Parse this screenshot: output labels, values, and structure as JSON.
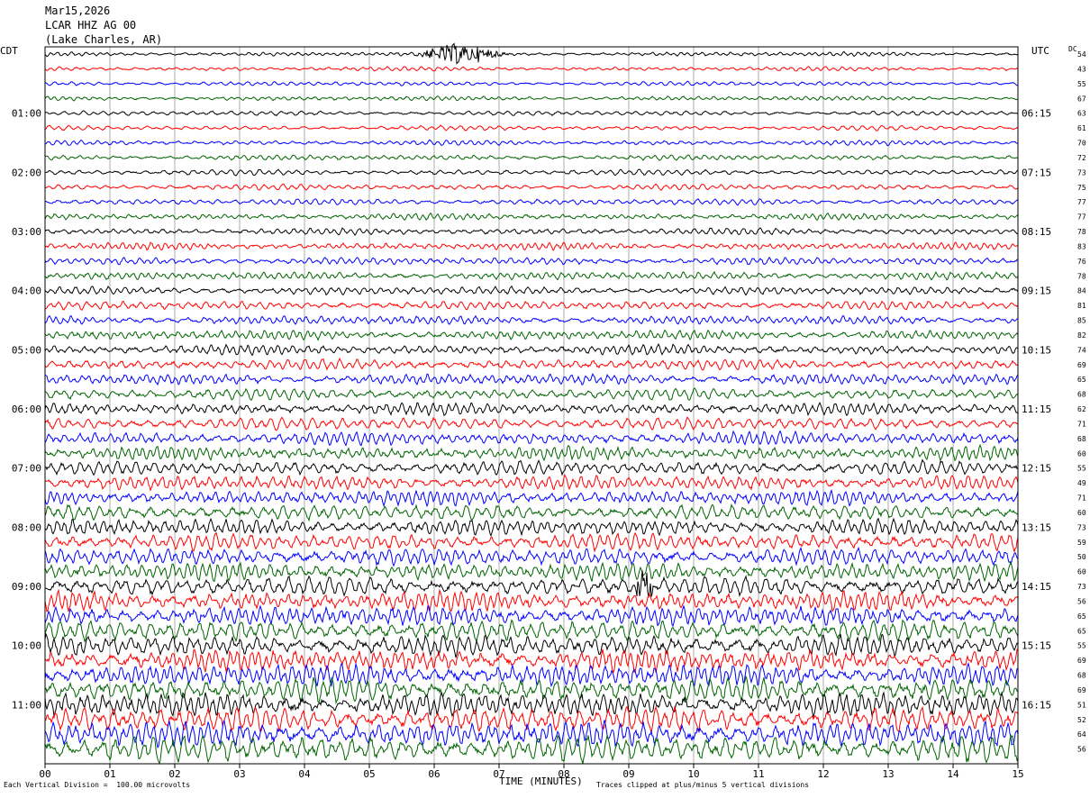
{
  "header": {
    "date": "Mar15,2026",
    "station": "LCAR HHZ AG 00",
    "location": "(Lake Charles, AR)"
  },
  "left_zone": "CDT",
  "right_zone": "UTC",
  "dc_label": "DC",
  "footer": {
    "scale": "Each Vertical Division =  100.00 microvolts",
    "clip": "Traces clipped at plus/minus 5 vertical divisions"
  },
  "chart_data": {
    "type": "line",
    "title": "LCAR HHZ AG 00",
    "xlabel": "TIME (MINUTES)",
    "xlim": [
      0,
      15
    ],
    "x_ticks": [
      "00",
      "01",
      "02",
      "03",
      "04",
      "05",
      "06",
      "07",
      "08",
      "09",
      "10",
      "11",
      "12",
      "13",
      "14",
      "15"
    ],
    "trace_colors": [
      "#000000",
      "#ff0000",
      "#0000ff",
      "#006400"
    ],
    "left_hour_labels": [
      "01:00",
      "02:00",
      "03:00",
      "04:00",
      "05:00",
      "06:00",
      "07:00",
      "08:00",
      "09:00",
      "10:00",
      "11:00"
    ],
    "right_hour_labels": [
      "06:15",
      "07:15",
      "08:15",
      "09:15",
      "10:15",
      "11:15",
      "12:15",
      "13:15",
      "14:15",
      "15:15",
      "16:15"
    ],
    "dc_offsets": [
      54,
      43,
      55,
      67,
      63,
      61,
      70,
      72,
      73,
      75,
      77,
      77,
      78,
      83,
      76,
      78,
      84,
      81,
      85,
      82,
      74,
      69,
      65,
      68,
      62,
      71,
      68,
      60,
      55,
      49,
      71,
      60,
      73,
      59,
      50,
      60,
      73,
      56,
      65,
      65,
      55,
      69,
      68,
      69,
      51,
      52,
      64,
      56
    ],
    "vertical_division_microvolts": 100.0,
    "clip_divisions": 5
  }
}
